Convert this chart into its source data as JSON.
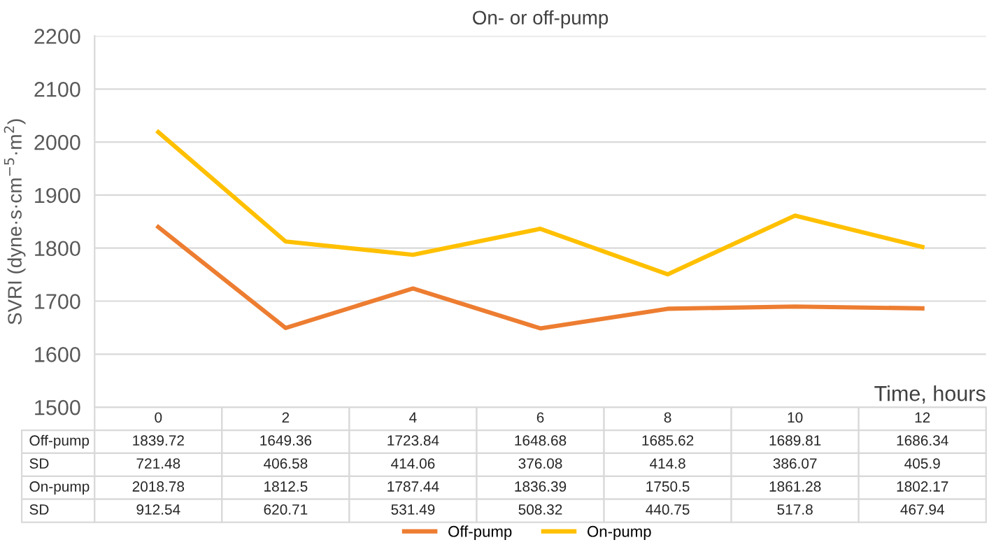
{
  "chart_data": {
    "type": "line",
    "title": "On- or off-pump",
    "xlabel": "Time, hours",
    "ylabel": "SVRI (dyne·s·cm$^{−5}$·m$^{2}$)",
    "categories": [
      "0",
      "2",
      "4",
      "6",
      "8",
      "10",
      "12"
    ],
    "series": [
      {
        "name": "Off-pump",
        "color": "#ed7d31",
        "values": [
          1839.72,
          1649.36,
          1723.84,
          1648.68,
          1685.62,
          1689.81,
          1686.34
        ]
      },
      {
        "name": "On-pump",
        "color": "#ffc000",
        "values": [
          2018.78,
          1812.5,
          1787.44,
          1836.39,
          1750.5,
          1861.28,
          1802.17
        ]
      }
    ],
    "annotations": [
      "SD",
      "721.48",
      "406.58",
      "414.06",
      "376.08",
      "414.8",
      "386.07",
      "405.9",
      "SD",
      "912.54",
      "620.71",
      "531.49",
      "508.32",
      "440.75",
      "517.8",
      "467.94"
    ],
    "ylim": [
      1500,
      2200
    ],
    "yticks": [
      1500,
      1600,
      1700,
      1800,
      1900,
      2000,
      2100,
      2200
    ],
    "grid": "y",
    "legend": "bottom",
    "data_labels": true,
    "tick_labels": "y",
    "marker": "none",
    "line_style": "solid"
  }
}
